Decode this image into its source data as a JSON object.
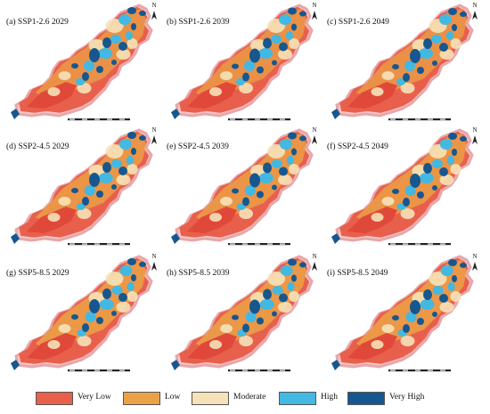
{
  "panels": [
    {
      "title": "(a) SSP1-2.6 2029"
    },
    {
      "title": "(b) SSP1-2.6 2039"
    },
    {
      "title": "(c) SSP1-2.6 2049"
    },
    {
      "title": "(d) SSP2-4.5 2029"
    },
    {
      "title": "(e) SSP2-4.5 2039"
    },
    {
      "title": "(f) SSP2-4.5 2049"
    },
    {
      "title": "(g) SSP5-8.5 2029"
    },
    {
      "title": "(h) SSP5-8.5 2039"
    },
    {
      "title": "(i) SSP5-8.5 2049"
    }
  ],
  "north_label": "N",
  "legend": [
    {
      "label": "Very Low",
      "color": "#e8604c"
    },
    {
      "label": "Low",
      "color": "#eba246"
    },
    {
      "label": "Moderate",
      "color": "#f6e2b8"
    },
    {
      "label": "High",
      "color": "#43b8e2"
    },
    {
      "label": "Very High",
      "color": "#17578f"
    }
  ]
}
